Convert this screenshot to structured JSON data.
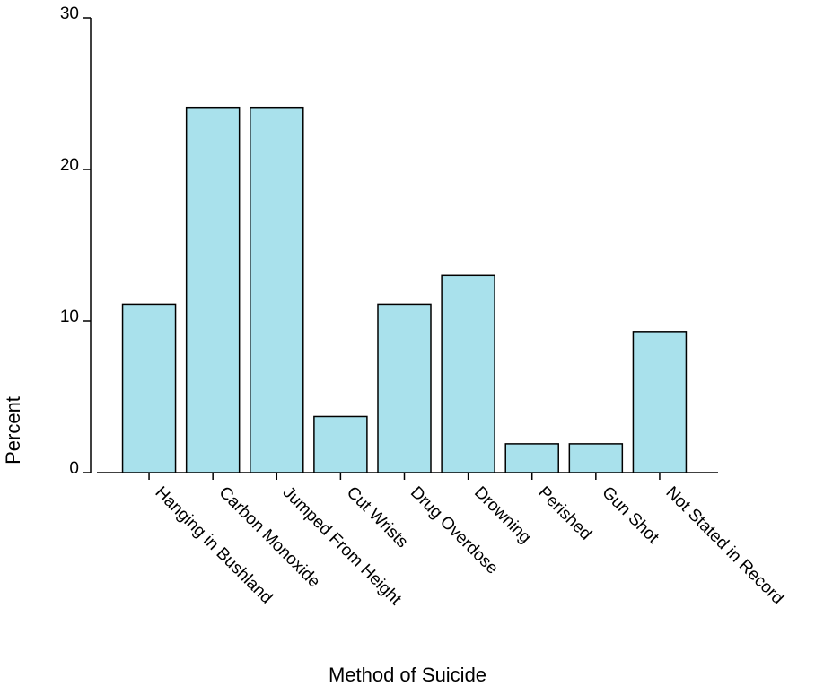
{
  "chart_data": {
    "type": "bar",
    "x_label": "Method of Suicide",
    "y_label": "Percent",
    "categories": [
      "Hanging in Bushland",
      "Carbon Monoxide",
      "Jumped From Height",
      "Cut Wrists",
      "Drug Overdose",
      "Drowning",
      "Perished",
      "Gun Shot",
      "Not Stated in Record"
    ],
    "values": [
      11.1,
      24.1,
      24.1,
      3.7,
      11.1,
      13.0,
      1.9,
      1.9,
      9.3
    ],
    "color": "#a9e1ec",
    "ylim": [
      0,
      30
    ],
    "yticks": [
      0,
      10,
      20,
      30
    ],
    "grid": false
  }
}
